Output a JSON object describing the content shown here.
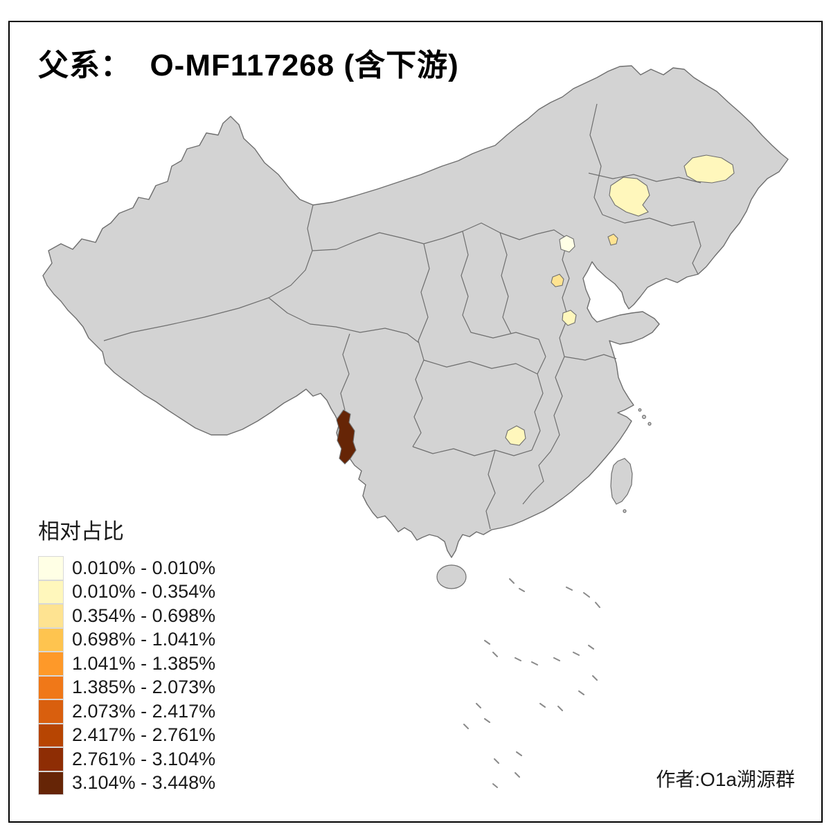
{
  "title": "父系：  O-MF117268 (含下游)",
  "legend": {
    "title": "相对占比",
    "bins": [
      {
        "label": "0.010% - 0.010%",
        "color": "#FFFFE5"
      },
      {
        "label": "0.010% - 0.354%",
        "color": "#FFF7BC"
      },
      {
        "label": "0.354% - 0.698%",
        "color": "#FEE391"
      },
      {
        "label": "0.698% - 1.041%",
        "color": "#FEC44F"
      },
      {
        "label": "1.041% - 1.385%",
        "color": "#FE9929"
      },
      {
        "label": "1.385% - 2.073%",
        "color": "#F07818"
      },
      {
        "label": "2.073% - 2.417%",
        "color": "#D95F0E"
      },
      {
        "label": "2.417% - 2.761%",
        "color": "#B74502"
      },
      {
        "label": "2.761% - 3.104%",
        "color": "#8E2D04"
      },
      {
        "label": "3.104% - 3.448%",
        "color": "#662506"
      }
    ]
  },
  "author": "作者:O1a溯源群",
  "map": {
    "base_fill": "#d3d3d3",
    "border_color": "#6e6e6e",
    "sea_mark_color": "#8a8a8a",
    "highlights": [
      {
        "id": "heilongjiang-blob",
        "color": "#FFF7BC",
        "bin": "0.010% - 0.354%"
      },
      {
        "id": "inner-mongolia-east-blob",
        "color": "#FFF7BC",
        "bin": "0.010% - 0.354%"
      },
      {
        "id": "beijing-blob",
        "color": "#FFFFE5",
        "bin": "0.010% - 0.010%"
      },
      {
        "id": "liaoning-blob",
        "color": "#FEE391",
        "bin": "0.354% - 0.698%"
      },
      {
        "id": "hebei-south-blob",
        "color": "#FEE391",
        "bin": "0.354% - 0.698%"
      },
      {
        "id": "shandong-west-blob",
        "color": "#FFF7BC",
        "bin": "0.010% - 0.354%"
      },
      {
        "id": "guizhou-blob",
        "color": "#FFF7BC",
        "bin": "0.010% - 0.354%"
      },
      {
        "id": "yunnan-west-strip",
        "color": "#662506",
        "bin": "3.104% - 3.448%"
      }
    ]
  },
  "chart_data": {
    "type": "choropleth_map",
    "title": "父系：  O-MF117268 (含下游)",
    "legend_title": "相对占比",
    "bins": [
      {
        "range": "0.010% - 0.010%",
        "color": "#FFFFE5"
      },
      {
        "range": "0.010% - 0.354%",
        "color": "#FFF7BC"
      },
      {
        "range": "0.354% - 0.698%",
        "color": "#FEE391"
      },
      {
        "range": "0.698% - 1.041%",
        "color": "#FEC44F"
      },
      {
        "range": "1.041% - 1.385%",
        "color": "#FE9929"
      },
      {
        "range": "1.385% - 2.073%",
        "color": "#F07818"
      },
      {
        "range": "2.073% - 2.417%",
        "color": "#D95F0E"
      },
      {
        "range": "2.417% - 2.761%",
        "color": "#B74502"
      },
      {
        "range": "2.761% - 3.104%",
        "color": "#8E2D04"
      },
      {
        "range": "3.104% - 3.448%",
        "color": "#662506"
      }
    ],
    "highlighted_regions": [
      {
        "id": "heilongjiang-blob",
        "bin": "0.010% - 0.354%",
        "color": "#FFF7BC"
      },
      {
        "id": "inner-mongolia-east-blob",
        "bin": "0.010% - 0.354%",
        "color": "#FFF7BC"
      },
      {
        "id": "beijing-blob",
        "bin": "0.010% - 0.010%",
        "color": "#FFFFE5"
      },
      {
        "id": "liaoning-blob",
        "bin": "0.354% - 0.698%",
        "color": "#FEE391"
      },
      {
        "id": "hebei-south-blob",
        "bin": "0.354% - 0.698%",
        "color": "#FEE391"
      },
      {
        "id": "shandong-west-blob",
        "bin": "0.010% - 0.354%",
        "color": "#FFF7BC"
      },
      {
        "id": "guizhou-blob",
        "bin": "0.010% - 0.354%",
        "color": "#FFF7BC"
      },
      {
        "id": "yunnan-west-strip",
        "bin": "3.104% - 3.448%",
        "color": "#662506"
      }
    ],
    "annotations": [
      "作者:O1a溯源群"
    ]
  }
}
